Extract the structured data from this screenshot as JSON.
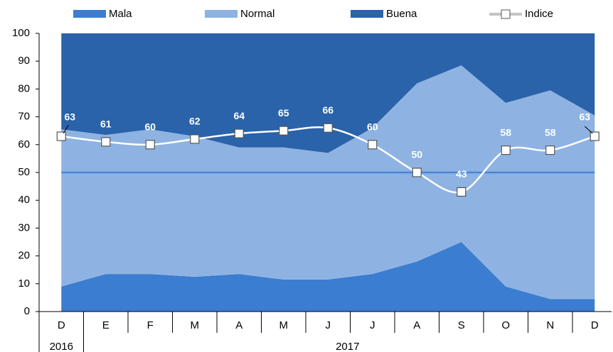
{
  "chart_data": {
    "type": "stacked_area_line",
    "categories": [
      "D",
      "E",
      "F",
      "M",
      "A",
      "M",
      "J",
      "J",
      "A",
      "S",
      "O",
      "N",
      "D"
    ],
    "groups": [
      {
        "label": "2016",
        "count": 1
      },
      {
        "label": "2017",
        "count": 12
      }
    ],
    "series": [
      {
        "name": "Mala",
        "color": "#3b7dd0",
        "values": [
          9,
          13.5,
          13.5,
          12.5,
          13.5,
          11.5,
          11.5,
          13.5,
          18,
          25,
          9,
          4.5,
          4.5
        ]
      },
      {
        "name": "Normal",
        "color": "#8eb3e3",
        "values": [
          56.5,
          50,
          52,
          50.5,
          45.5,
          47.5,
          45.5,
          52.5,
          64,
          63.5,
          66,
          75,
          66
        ]
      },
      {
        "name": "Buena",
        "color": "#2a63a9",
        "values": [
          34.5,
          36.5,
          34.5,
          37,
          41,
          41,
          43,
          34,
          18,
          11.5,
          25,
          20.5,
          29.5
        ]
      }
    ],
    "line": {
      "name": "Indice",
      "color": "#ffffff",
      "values": [
        63,
        61,
        60,
        62,
        64,
        65,
        66,
        60,
        50,
        43,
        58,
        58,
        63
      ]
    },
    "reference_line": 50,
    "ylim": [
      0,
      100
    ],
    "yticks": [
      0,
      10,
      20,
      30,
      40,
      50,
      60,
      70,
      80,
      90,
      100
    ]
  }
}
